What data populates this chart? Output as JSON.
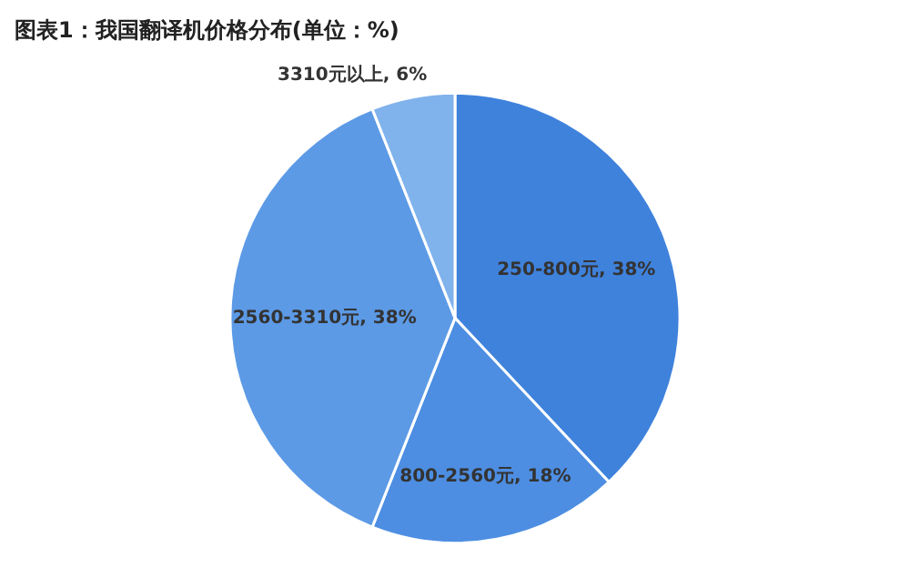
{
  "chart_data": {
    "type": "pie",
    "title": "图表1：我国翻译机价格分布(单位：%)",
    "categories": [
      "250-800元",
      "800-2560元",
      "2560-3310元",
      "3310元以上"
    ],
    "values": [
      38,
      18,
      38,
      6
    ],
    "value_labels": [
      "38%",
      "18%",
      "38%",
      "6%"
    ],
    "colors": [
      "#3f82dc",
      "#4d8ee2",
      "#5c9ae6",
      "#80b2ec"
    ],
    "legend": false
  }
}
